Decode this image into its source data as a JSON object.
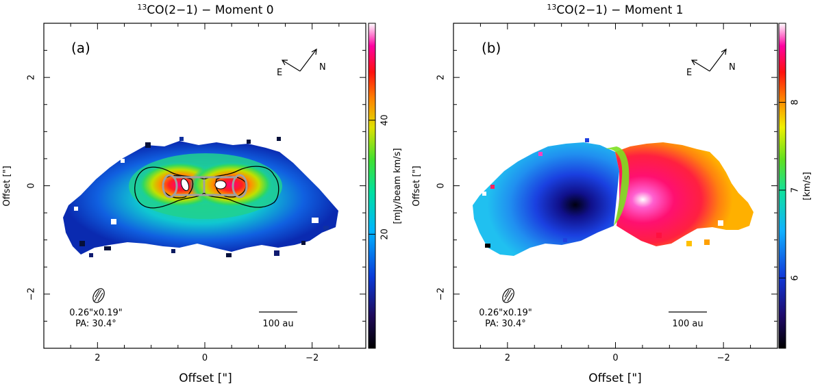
{
  "chart_data": [
    {
      "type": "heatmap",
      "panel_label": "(a)",
      "title_sup": "13",
      "title_main": "CO(2−1) − Moment 0",
      "xlabel": "Offset [\"]",
      "ylabel": "Offset [\"]",
      "x_ticks": [
        "2",
        "0",
        "−2"
      ],
      "x_tick_values": [
        2,
        0,
        -2
      ],
      "y_ticks": [
        "2",
        "0",
        "−2"
      ],
      "y_tick_values": [
        2,
        0,
        -2
      ],
      "xlim": [
        3.0,
        -3.0
      ],
      "ylim": [
        -3.0,
        3.0
      ],
      "colorbar_label": "[mJy/beam km/s]",
      "colorbar_ticks": [
        "20",
        "40"
      ],
      "colorbar_tick_values": [
        20,
        40
      ],
      "colorbar_range": [
        0,
        57
      ],
      "compass": {
        "east": "E",
        "north": "N"
      },
      "beam_size": "0.26\"x0.19\"",
      "beam_pa": "PA: 30.4°",
      "scalebar": "100 au",
      "colors": {
        "low": "#000000",
        "mid": "#00c060",
        "high": "#ff0080",
        "peak": "#ffffff"
      }
    },
    {
      "type": "heatmap",
      "panel_label": "(b)",
      "title_sup": "13",
      "title_main": "CO(2−1) − Moment 1",
      "xlabel": "Offset [\"]",
      "ylabel": "Offset [\"]",
      "x_ticks": [
        "2",
        "0",
        "−2"
      ],
      "x_tick_values": [
        2,
        0,
        -2
      ],
      "y_ticks": [
        "2",
        "0",
        "−2"
      ],
      "y_tick_values": [
        2,
        0,
        -2
      ],
      "xlim": [
        3.0,
        -3.0
      ],
      "ylim": [
        -3.0,
        3.0
      ],
      "colorbar_label": "[km/s]",
      "colorbar_ticks": [
        "6",
        "7",
        "8"
      ],
      "colorbar_tick_values": [
        6,
        7,
        8
      ],
      "colorbar_range": [
        5.2,
        8.9
      ],
      "compass": {
        "east": "E",
        "north": "N"
      },
      "beam_size": "0.26\"x0.19\"",
      "beam_pa": "PA: 30.4°",
      "scalebar": "100 au",
      "colors": {
        "blue_side": "#1a2fd0",
        "systemic": "#9cff00",
        "red_side": "#ff1060"
      }
    }
  ]
}
